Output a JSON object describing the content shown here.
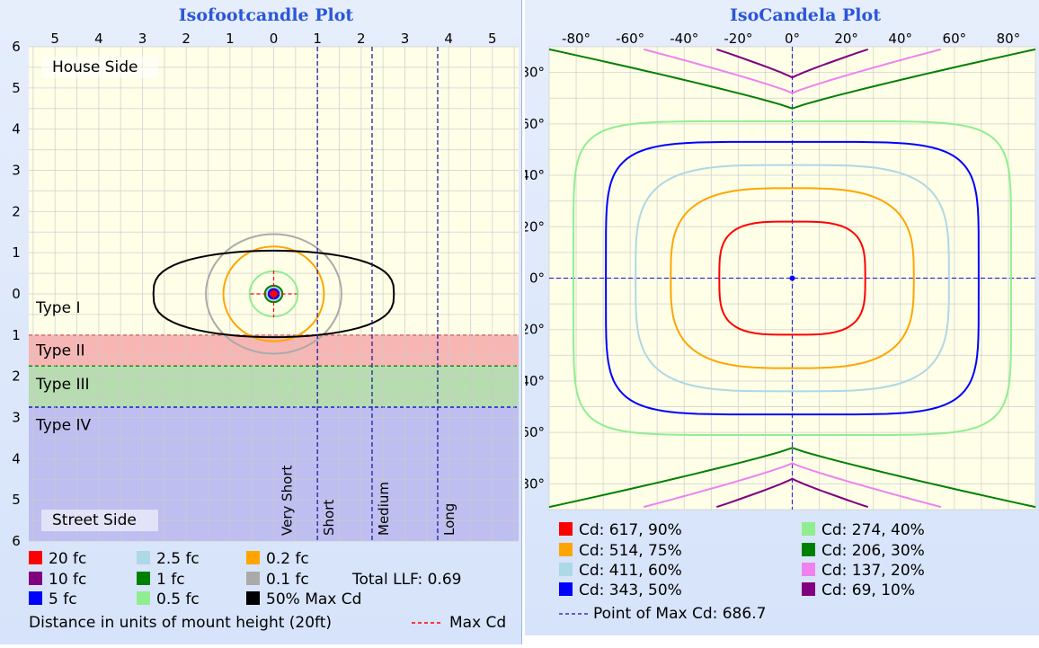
{
  "chart_data": [
    {
      "type": "contour",
      "title": "Isofootcandle Plot",
      "x_ticks": [
        "5",
        "4",
        "3",
        "2",
        "1",
        "0",
        "1",
        "2",
        "3",
        "4",
        "5"
      ],
      "x_tick_values": [
        -5,
        -4,
        -3,
        -2,
        -1,
        0,
        1,
        2,
        3,
        4,
        5
      ],
      "y_ticks": [
        "6",
        "5",
        "4",
        "3",
        "2",
        "1",
        "0",
        "1",
        "2",
        "3",
        "4",
        "5",
        "6"
      ],
      "y_tick_values": [
        6,
        5,
        4,
        3,
        2,
        1,
        0,
        -1,
        -2,
        -3,
        -4,
        -5,
        -6
      ],
      "xlim": [
        -5.6,
        5.6
      ],
      "ylim": [
        -6,
        6
      ],
      "grid": true,
      "regions": [
        {
          "label": "House Side",
          "y_range": [
            0,
            6
          ]
        },
        {
          "label": "Type I",
          "y_range": [
            -1,
            0
          ]
        },
        {
          "label": "Type II",
          "y_range": [
            -1.75,
            -1
          ],
          "color": "#f6a9a9",
          "line_color": "#e02020"
        },
        {
          "label": "Type III",
          "y_range": [
            -2.75,
            -1.75
          ],
          "color": "#a9d6a4",
          "line_color": "#1a8a1a"
        },
        {
          "label": "Type IV",
          "y_range": [
            -6,
            -2.75
          ],
          "color": "#b3b3f2",
          "line_color": "#1a1acc"
        },
        {
          "label": "Street Side",
          "y_range": [
            -6,
            -5
          ]
        }
      ],
      "distance_lines": [
        {
          "label": "Very Short",
          "x": 0
        },
        {
          "label": "Short",
          "x": 1
        },
        {
          "label": "Medium",
          "x": 2.25
        },
        {
          "label": "Long",
          "x": 3.75
        }
      ],
      "contours": [
        {
          "label": "20 fc",
          "color": "#ff0000",
          "rx": 0.07,
          "ry": 0.07
        },
        {
          "label": "10 fc",
          "color": "#800080",
          "rx": 0.1,
          "ry": 0.1
        },
        {
          "label": "5 fc",
          "color": "#0000ff",
          "rx": 0.12,
          "ry": 0.12
        },
        {
          "label": "2.5 fc",
          "color": "#add8e6",
          "rx": 0.16,
          "ry": 0.16
        },
        {
          "label": "1 fc",
          "color": "#008000",
          "rx": 0.2,
          "ry": 0.2
        },
        {
          "label": "0.5 fc",
          "color": "#90ee90",
          "rx": 0.55,
          "ry": 0.55
        },
        {
          "label": "0.2 fc",
          "color": "#ffa500",
          "rx": 1.15,
          "ry": 1.15
        },
        {
          "label": "0.1 fc",
          "color": "#aaaaaa",
          "rx": 1.55,
          "ry": 1.45
        },
        {
          "label": "50% Max Cd",
          "color": "#000000",
          "rx": 2.75,
          "ry": 1.05
        }
      ],
      "max_cd_point": {
        "x": 0,
        "y": 0
      },
      "legend": {
        "position": "bottom",
        "items": [
          {
            "label": "20 fc",
            "color": "#ff0000"
          },
          {
            "label": "2.5 fc",
            "color": "#add8e6"
          },
          {
            "label": "0.2 fc",
            "color": "#ffa500"
          },
          {
            "label": "10 fc",
            "color": "#800080"
          },
          {
            "label": "1 fc",
            "color": "#008000"
          },
          {
            "label": "0.1 fc",
            "color": "#aaaaaa"
          },
          {
            "label": "5 fc",
            "color": "#0000ff"
          },
          {
            "label": "0.5 fc",
            "color": "#90ee90"
          },
          {
            "label": "50% Max Cd",
            "color": "#000000"
          }
        ],
        "total_llf": "Total LLF: 0.69",
        "distance_note": "Distance in units of mount height (20ft)",
        "max_cd_label": "Max Cd"
      }
    },
    {
      "type": "contour",
      "title": "IsoCandela Plot",
      "x_ticks": [
        "-80°",
        "-60°",
        "-40°",
        "-20°",
        "0°",
        "20°",
        "40°",
        "60°",
        "80°"
      ],
      "x_tick_values": [
        -80,
        -60,
        -40,
        -20,
        0,
        20,
        40,
        60,
        80
      ],
      "y_ticks": [
        "80°",
        "60°",
        "40°",
        "20°",
        "0°",
        "-20°",
        "-40°",
        "-60°",
        "-80°"
      ],
      "y_tick_values": [
        80,
        60,
        40,
        20,
        0,
        -20,
        -40,
        -60,
        -80
      ],
      "xlim": [
        -90,
        90
      ],
      "ylim": [
        -90,
        90
      ],
      "grid": true,
      "contours": [
        {
          "label": "Cd: 617, 90%",
          "color": "#ff0000",
          "shape": "closed",
          "rx": 27,
          "ry": 22,
          "n": 3.5
        },
        {
          "label": "Cd: 514, 75%",
          "color": "#ffa500",
          "shape": "closed",
          "rx": 45,
          "ry": 35,
          "n": 3.2
        },
        {
          "label": "Cd: 411, 60%",
          "color": "#add8e6",
          "shape": "closed",
          "rx": 58,
          "ry": 44,
          "n": 3.8
        },
        {
          "label": "Cd: 343, 50%",
          "color": "#0000ff",
          "shape": "closed",
          "rx": 69,
          "ry": 53,
          "n": 5.5
        },
        {
          "label": "Cd: 274, 40%",
          "color": "#90ee90",
          "shape": "closed",
          "rx": 81,
          "ry": 61,
          "n": 7
        },
        {
          "label": "Cd: 206, 30%",
          "color": "#008000",
          "shape": "polar",
          "apex": 66,
          "edge": 89,
          "span": 90
        },
        {
          "label": "Cd: 137, 20%",
          "color": "#ee82ee",
          "shape": "polar",
          "apex": 72,
          "edge": 89,
          "span": 55
        },
        {
          "label": "Cd: 69, 10%",
          "color": "#800080",
          "shape": "polar",
          "apex": 78,
          "edge": 89,
          "span": 28
        }
      ],
      "max_cd_point": {
        "x": 0,
        "y": 0
      },
      "legend": {
        "position": "bottom",
        "items": [
          {
            "label": "Cd: 617, 90%",
            "color": "#ff0000"
          },
          {
            "label": "Cd: 274, 40%",
            "color": "#90ee90"
          },
          {
            "label": "Cd: 514, 75%",
            "color": "#ffa500"
          },
          {
            "label": "Cd: 206, 30%",
            "color": "#008000"
          },
          {
            "label": "Cd: 411, 60%",
            "color": "#add8e6"
          },
          {
            "label": "Cd: 137, 20%",
            "color": "#ee82ee"
          },
          {
            "label": "Cd: 343, 50%",
            "color": "#0000ff"
          },
          {
            "label": "Cd: 69, 10%",
            "color": "#800080"
          }
        ],
        "max_cd_label": "Point of Max Cd: 686.7"
      }
    }
  ]
}
